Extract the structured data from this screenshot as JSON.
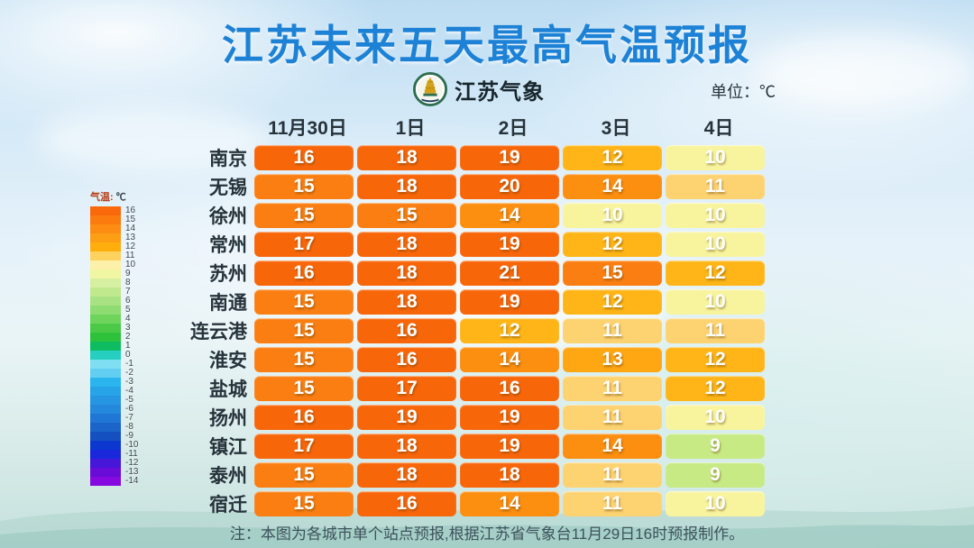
{
  "title": "江苏未来五天最高气温预报",
  "logo": {
    "text": "江苏气象"
  },
  "unit_label": "单位：℃",
  "legend": {
    "label_temp": "气温:",
    "label_unit": "℃",
    "items": [
      {
        "value": "16",
        "color": "#f9690b"
      },
      {
        "value": "15",
        "color": "#fb7b0e"
      },
      {
        "value": "14",
        "color": "#fc8d12"
      },
      {
        "value": "13",
        "color": "#fe9e15"
      },
      {
        "value": "12",
        "color": "#ffae0e"
      },
      {
        "value": "11",
        "color": "#fed25e"
      },
      {
        "value": "10",
        "color": "#fdf0a8"
      },
      {
        "value": "9",
        "color": "#f0f6a2"
      },
      {
        "value": "8",
        "color": "#d7efa0"
      },
      {
        "value": "7",
        "color": "#c0e98e"
      },
      {
        "value": "6",
        "color": "#a9e283"
      },
      {
        "value": "5",
        "color": "#8fdc72"
      },
      {
        "value": "4",
        "color": "#6ed45b"
      },
      {
        "value": "3",
        "color": "#4cca47"
      },
      {
        "value": "2",
        "color": "#2ec13b"
      },
      {
        "value": "1",
        "color": "#0ebd62"
      },
      {
        "value": "0",
        "color": "#26cfc0"
      },
      {
        "value": "-1",
        "color": "#7fdef2"
      },
      {
        "value": "-2",
        "color": "#62cef2"
      },
      {
        "value": "-3",
        "color": "#2ab5ee"
      },
      {
        "value": "-4",
        "color": "#27a3e8"
      },
      {
        "value": "-5",
        "color": "#2796e2"
      },
      {
        "value": "-6",
        "color": "#2488dc"
      },
      {
        "value": "-7",
        "color": "#2076d4"
      },
      {
        "value": "-8",
        "color": "#1a64ca"
      },
      {
        "value": "-9",
        "color": "#1450c0"
      },
      {
        "value": "-10",
        "color": "#0d38d0"
      },
      {
        "value": "-11",
        "color": "#1a28dc"
      },
      {
        "value": "-12",
        "color": "#4617d8"
      },
      {
        "value": "-13",
        "color": "#6a0cd8"
      },
      {
        "value": "-14",
        "color": "#860ae0"
      }
    ]
  },
  "cell_colors": {
    "21": "#f8660a",
    "20": "#f8660a",
    "19": "#f8660a",
    "18": "#f8660a",
    "17": "#f8660a",
    "16": "#f8660a",
    "15": "#fa7e12",
    "14": "#fc8e10",
    "13": "#ffa613",
    "12": "#ffb517",
    "11": "#fdd271",
    "10": "#f8f49e",
    "9": "#c8ea85"
  },
  "chart_data": {
    "type": "heatmap",
    "title": "江苏未来五天最高气温预报",
    "unit": "℃",
    "columns": [
      "11月30日",
      "1日",
      "2日",
      "3日",
      "4日"
    ],
    "rows": [
      "南京",
      "无锡",
      "徐州",
      "常州",
      "苏州",
      "南通",
      "连云港",
      "淮安",
      "盐城",
      "扬州",
      "镇江",
      "泰州",
      "宿迁"
    ],
    "values": [
      [
        16,
        18,
        19,
        12,
        10
      ],
      [
        15,
        18,
        20,
        14,
        11
      ],
      [
        15,
        15,
        14,
        10,
        10
      ],
      [
        17,
        18,
        19,
        12,
        10
      ],
      [
        16,
        18,
        21,
        15,
        12
      ],
      [
        15,
        18,
        19,
        12,
        10
      ],
      [
        15,
        16,
        12,
        11,
        11
      ],
      [
        15,
        16,
        14,
        13,
        12
      ],
      [
        15,
        17,
        16,
        11,
        12
      ],
      [
        16,
        19,
        19,
        11,
        10
      ],
      [
        17,
        18,
        19,
        14,
        9
      ],
      [
        15,
        18,
        18,
        11,
        9
      ],
      [
        15,
        16,
        14,
        11,
        10
      ]
    ],
    "legend_position": "left",
    "legend_range": [
      16,
      -14
    ]
  },
  "note": "注：本图为各城市单个站点预报,根据江苏省气象台11月29日16时预报制作。"
}
